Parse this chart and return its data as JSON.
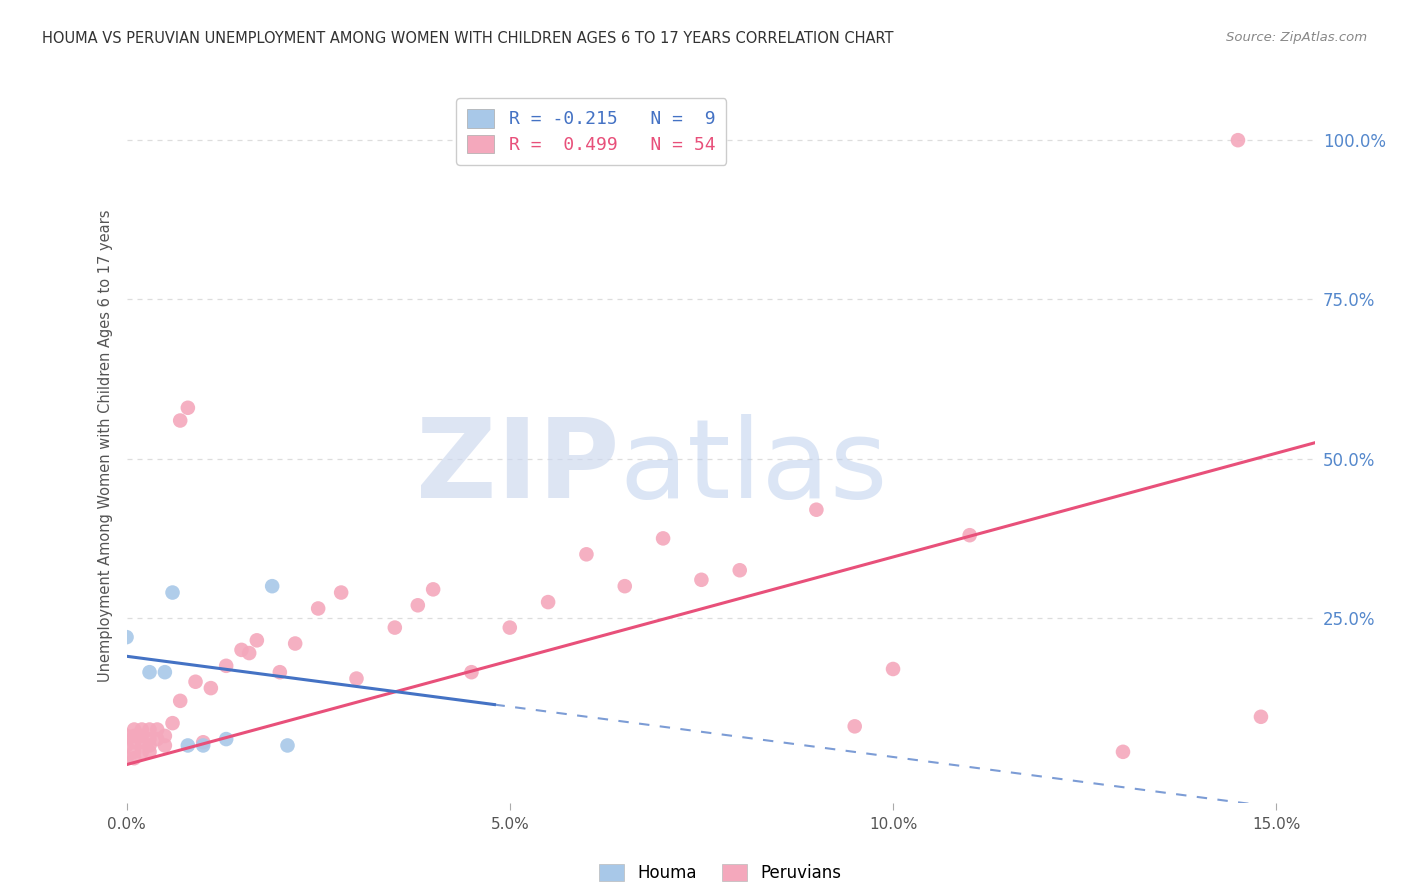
{
  "title": "HOUMA VS PERUVIAN UNEMPLOYMENT AMONG WOMEN WITH CHILDREN AGES 6 TO 17 YEARS CORRELATION CHART",
  "source": "Source: ZipAtlas.com",
  "ylabel": "Unemployment Among Women with Children Ages 6 to 17 years",
  "right_ytick_vals": [
    1.0,
    0.75,
    0.5,
    0.25
  ],
  "right_ytick_labels": [
    "100.0%",
    "75.0%",
    "50.0%",
    "25.0%"
  ],
  "xmin": 0.0,
  "xmax": 0.155,
  "ymin": -0.04,
  "ymax": 1.08,
  "houma_R": -0.215,
  "houma_N": 9,
  "peruvian_R": 0.499,
  "peruvian_N": 54,
  "houma_dot_color": "#a8c8e8",
  "houma_line_color": "#4472c4",
  "peruvian_dot_color": "#f4a8bc",
  "peruvian_line_color": "#e8507a",
  "houma_x": [
    0.0,
    0.003,
    0.005,
    0.006,
    0.008,
    0.01,
    0.013,
    0.019,
    0.021
  ],
  "houma_y": [
    0.22,
    0.165,
    0.165,
    0.29,
    0.05,
    0.05,
    0.06,
    0.3,
    0.05
  ],
  "peruvian_x": [
    0.0,
    0.0,
    0.0,
    0.001,
    0.001,
    0.001,
    0.001,
    0.001,
    0.002,
    0.002,
    0.002,
    0.002,
    0.003,
    0.003,
    0.003,
    0.003,
    0.004,
    0.004,
    0.005,
    0.005,
    0.006,
    0.007,
    0.007,
    0.008,
    0.009,
    0.01,
    0.011,
    0.013,
    0.015,
    0.016,
    0.017,
    0.02,
    0.022,
    0.025,
    0.028,
    0.03,
    0.035,
    0.038,
    0.04,
    0.045,
    0.05,
    0.055,
    0.06,
    0.065,
    0.07,
    0.075,
    0.08,
    0.09,
    0.095,
    0.1,
    0.11,
    0.13,
    0.145,
    0.148
  ],
  "peruvian_y": [
    0.03,
    0.05,
    0.065,
    0.03,
    0.04,
    0.055,
    0.065,
    0.075,
    0.04,
    0.055,
    0.065,
    0.075,
    0.04,
    0.05,
    0.06,
    0.075,
    0.06,
    0.075,
    0.05,
    0.065,
    0.085,
    0.12,
    0.56,
    0.58,
    0.15,
    0.055,
    0.14,
    0.175,
    0.2,
    0.195,
    0.215,
    0.165,
    0.21,
    0.265,
    0.29,
    0.155,
    0.235,
    0.27,
    0.295,
    0.165,
    0.235,
    0.275,
    0.35,
    0.3,
    0.375,
    0.31,
    0.325,
    0.42,
    0.08,
    0.17,
    0.38,
    0.04,
    1.0,
    0.095
  ],
  "background_color": "#ffffff",
  "grid_color": "#dddddd",
  "houma_line_xmax": 0.048
}
